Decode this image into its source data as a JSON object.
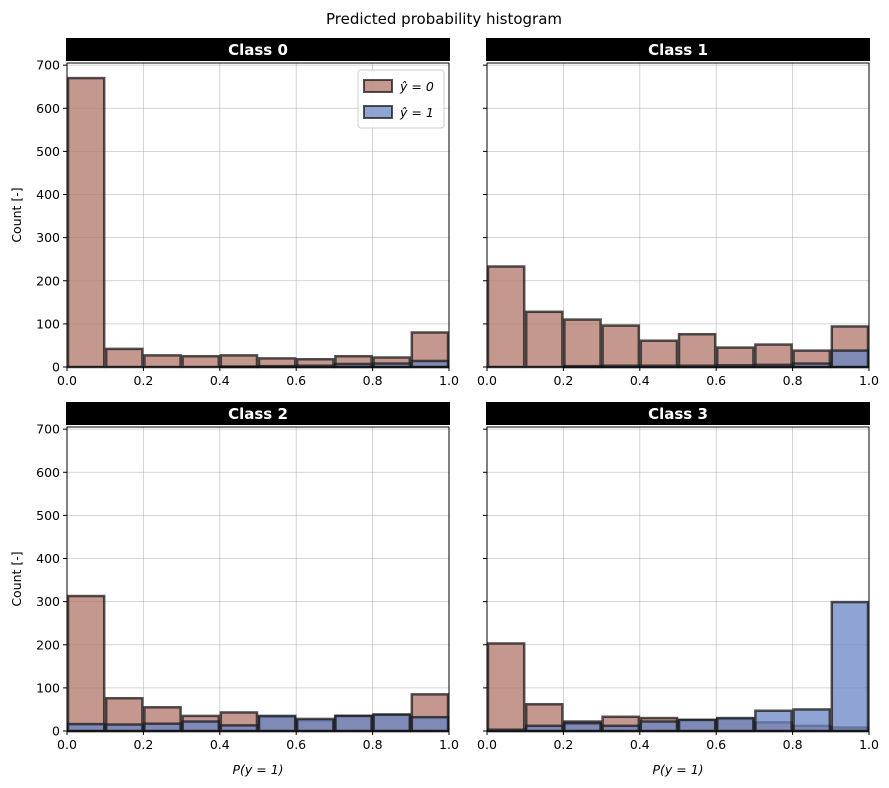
{
  "chart_data": {
    "type": "bar",
    "title": "Predicted probability histogram",
    "xlim": [
      0,
      1
    ],
    "ylim": [
      0,
      700
    ],
    "x_ticks": [
      "0.0",
      "0.2",
      "0.4",
      "0.6",
      "0.8",
      "1.0"
    ],
    "y_ticks": [
      "0",
      "100",
      "200",
      "300",
      "400",
      "500",
      "600",
      "700"
    ],
    "grid": true,
    "legend_placement": "top-right",
    "colors": {
      "y0": "#b07668",
      "y1": "#6a85c4",
      "edge": "#1a1a1a"
    },
    "bins": [
      0.0,
      0.1,
      0.2,
      0.3,
      0.4,
      0.5,
      0.6,
      0.7,
      0.8,
      0.9,
      1.0
    ],
    "legend": [
      "ŷ = 0",
      "ŷ = 1"
    ],
    "panels": [
      {
        "title": "Class 0",
        "ylabel": "Count [-]",
        "xlabel": "",
        "series": [
          {
            "name": "ŷ = 0",
            "values": [
              670,
              42,
              27,
              25,
              27,
              20,
              18,
              25,
              22,
              80
            ]
          },
          {
            "name": "ŷ = 1",
            "values": [
              0,
              0,
              0,
              0,
              1,
              2,
              3,
              7,
              8,
              14
            ]
          }
        ]
      },
      {
        "title": "Class 1",
        "ylabel": "",
        "xlabel": "",
        "series": [
          {
            "name": "ŷ = 0",
            "values": [
              233,
              128,
              110,
              96,
              61,
              76,
              45,
              52,
              38,
              94
            ]
          },
          {
            "name": "ŷ = 1",
            "values": [
              0,
              0,
              2,
              3,
              3,
              3,
              4,
              5,
              8,
              38
            ]
          }
        ]
      },
      {
        "title": "Class 2",
        "ylabel": "Count [-]",
        "xlabel": "P(y = 1)",
        "series": [
          {
            "name": "ŷ = 0",
            "values": [
              313,
              76,
              55,
              35,
              43,
              33,
              25,
              35,
              38,
              85
            ]
          },
          {
            "name": "ŷ = 1",
            "values": [
              16,
              15,
              17,
              22,
              13,
              35,
              28,
              35,
              38,
              32
            ]
          }
        ]
      },
      {
        "title": "Class 3",
        "ylabel": "",
        "xlabel": "P(y = 1)",
        "series": [
          {
            "name": "ŷ = 0",
            "values": [
              203,
              62,
              22,
              33,
              30,
              25,
              28,
              20,
              12,
              8
            ]
          },
          {
            "name": "ŷ = 1",
            "values": [
              3,
              12,
              18,
              12,
              22,
              26,
              30,
              47,
              50,
              299
            ]
          }
        ]
      }
    ]
  }
}
